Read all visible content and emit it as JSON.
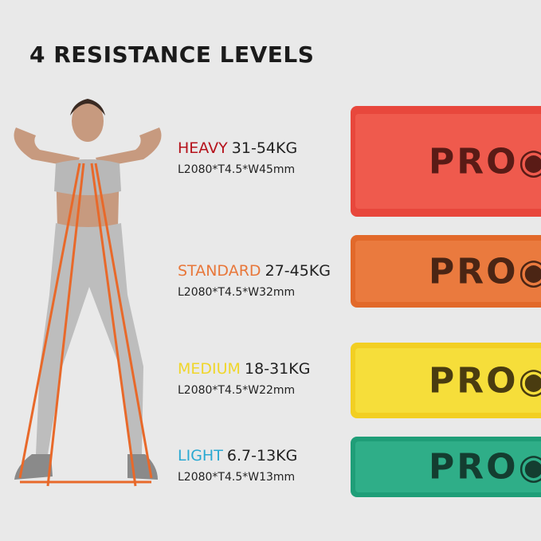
{
  "title": "4 RESISTANCE LEVELS",
  "levels": [
    {
      "name": "HEAVY",
      "range": "31-54KG",
      "spec": "L2080*T4.5*W45mm",
      "label_color": "#b5121b",
      "band_color": "#e8473c",
      "band_inner": "#ef5a4d",
      "logo_color": "#5a1b16"
    },
    {
      "name": "STANDARD",
      "range": "27-45KG",
      "spec": "L2080*T4.5*W32mm",
      "label_color": "#e8773a",
      "band_color": "#e2692a",
      "band_inner": "#ea7a3e",
      "logo_color": "#4b2514"
    },
    {
      "name": "MEDIUM",
      "range": "18-31KG",
      "spec": "L2080*T4.5*W22mm",
      "label_color": "#f0d62a",
      "band_color": "#f2cf22",
      "band_inner": "#f6de3a",
      "logo_color": "#4a3c10"
    },
    {
      "name": "LIGHT",
      "range": "6.7-13KG",
      "spec": "L2080*T4.5*W13mm",
      "label_color": "#2aa9d2",
      "band_color": "#1f9e78",
      "band_inner": "#2fae88",
      "logo_color": "#143d30"
    }
  ],
  "brand_logo": "PROIRON"
}
